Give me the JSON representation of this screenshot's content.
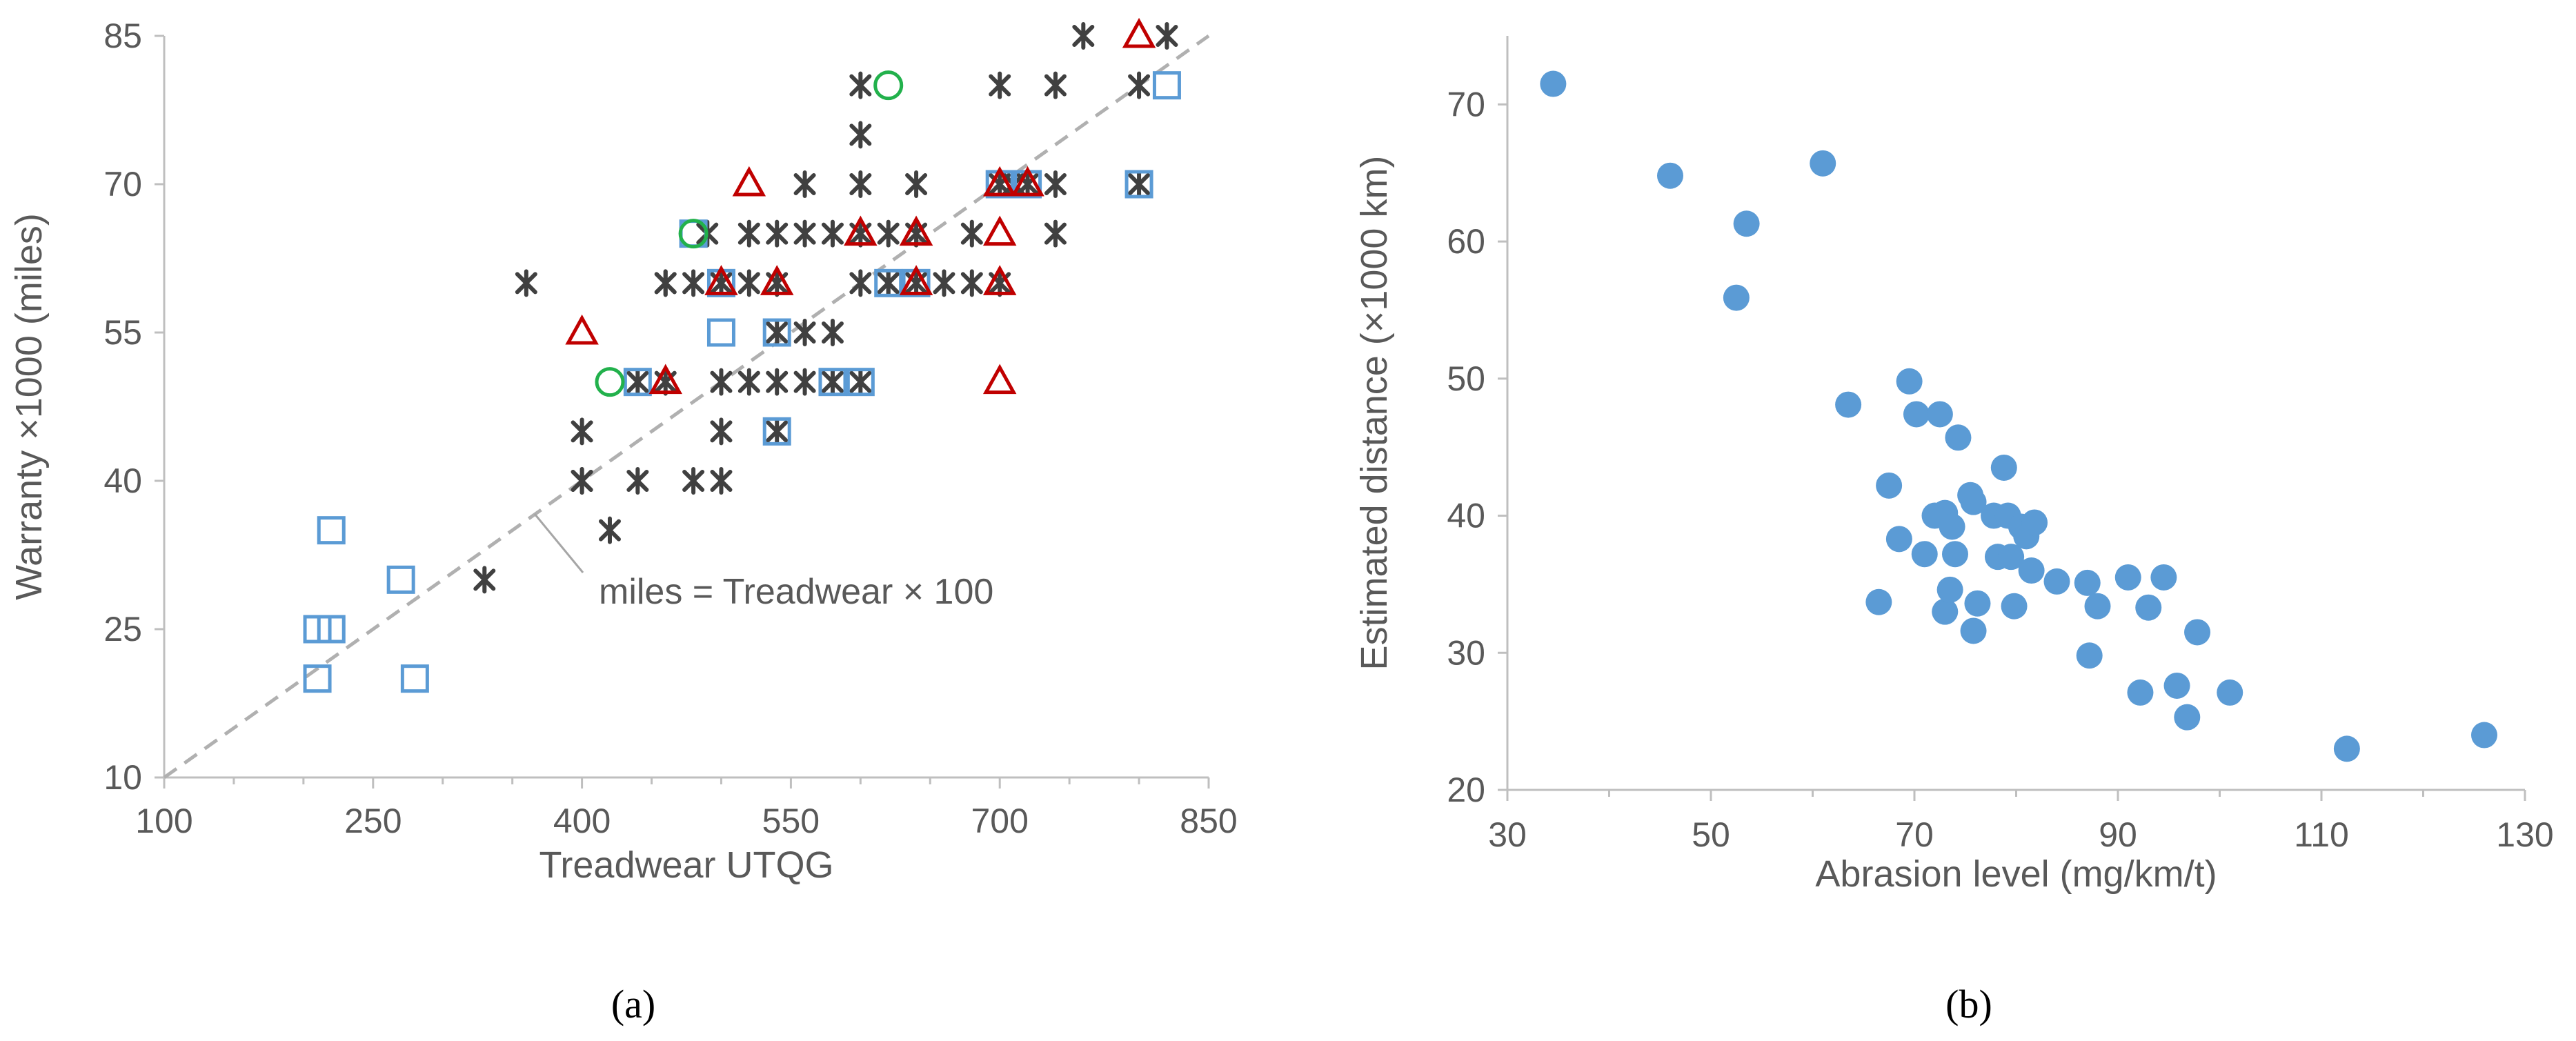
{
  "panels": [
    {
      "label": "(a)"
    },
    {
      "label": "(b)"
    }
  ],
  "chart_data": [
    {
      "type": "scatter",
      "title": "",
      "xlabel": "Treadwear UTQG",
      "ylabel": "Warranty ×1000 (miles)",
      "xlim": [
        100,
        850
      ],
      "ylim": [
        10,
        85
      ],
      "xticks": [
        100,
        250,
        400,
        550,
        700,
        850
      ],
      "yticks": [
        10,
        25,
        40,
        55,
        70,
        85
      ],
      "grid": false,
      "colors": {
        "asterisk": "#404040",
        "square": "#5b9bd5",
        "triangle": "#c00000",
        "circle": "#22b14c",
        "refline": "#b0b0b0"
      },
      "reference_line": {
        "label": "miles = Treadwear × 100",
        "x": [
          100,
          850
        ],
        "y": [
          10,
          85
        ]
      },
      "series": [
        {
          "marker": "asterisk",
          "points": [
            [
              360,
              60
            ],
            [
              400,
              45
            ],
            [
              400,
              40
            ],
            [
              400,
              40
            ],
            [
              420,
              35
            ],
            [
              440,
              40
            ],
            [
              440,
              50
            ],
            [
              460,
              50
            ],
            [
              460,
              60
            ],
            [
              480,
              40
            ],
            [
              480,
              60
            ],
            [
              490,
              65
            ],
            [
              500,
              40
            ],
            [
              500,
              45
            ],
            [
              500,
              50
            ],
            [
              500,
              60
            ],
            [
              500,
              60
            ],
            [
              520,
              50
            ],
            [
              520,
              60
            ],
            [
              520,
              65
            ],
            [
              540,
              50
            ],
            [
              540,
              55
            ],
            [
              540,
              60
            ],
            [
              540,
              65
            ],
            [
              560,
              50
            ],
            [
              560,
              55
            ],
            [
              560,
              65
            ],
            [
              560,
              70
            ],
            [
              580,
              50
            ],
            [
              580,
              55
            ],
            [
              580,
              65
            ],
            [
              600,
              60
            ],
            [
              600,
              65
            ],
            [
              600,
              70
            ],
            [
              600,
              75
            ],
            [
              600,
              80
            ],
            [
              620,
              60
            ],
            [
              620,
              65
            ],
            [
              640,
              60
            ],
            [
              640,
              65
            ],
            [
              640,
              70
            ],
            [
              660,
              60
            ],
            [
              680,
              60
            ],
            [
              680,
              65
            ],
            [
              700,
              60
            ],
            [
              700,
              70
            ],
            [
              700,
              80
            ],
            [
              710,
              70
            ],
            [
              720,
              70
            ],
            [
              740,
              65
            ],
            [
              740,
              70
            ],
            [
              740,
              80
            ],
            [
              760,
              85
            ],
            [
              800,
              70
            ],
            [
              800,
              80
            ],
            [
              820,
              85
            ],
            [
              330,
              30
            ],
            [
              540,
              45
            ],
            [
              460,
              60
            ],
            [
              600,
              50
            ],
            [
              620,
              60
            ]
          ]
        },
        {
          "marker": "square",
          "points": [
            [
              210,
              25
            ],
            [
              210,
              20
            ],
            [
              220,
              35
            ],
            [
              220,
              25
            ],
            [
              270,
              30
            ],
            [
              280,
              20
            ],
            [
              440,
              50
            ],
            [
              480,
              65
            ],
            [
              500,
              60
            ],
            [
              500,
              55
            ],
            [
              540,
              55
            ],
            [
              540,
              45
            ],
            [
              580,
              50
            ],
            [
              600,
              50
            ],
            [
              620,
              60
            ],
            [
              640,
              60
            ],
            [
              700,
              70
            ],
            [
              720,
              70
            ],
            [
              800,
              70
            ],
            [
              820,
              80
            ]
          ]
        },
        {
          "marker": "triangle",
          "points": [
            [
              400,
              55
            ],
            [
              460,
              50
            ],
            [
              500,
              60
            ],
            [
              520,
              70
            ],
            [
              540,
              60
            ],
            [
              600,
              65
            ],
            [
              640,
              65
            ],
            [
              640,
              60
            ],
            [
              700,
              70
            ],
            [
              700,
              65
            ],
            [
              700,
              60
            ],
            [
              700,
              50
            ],
            [
              720,
              70
            ],
            [
              800,
              85
            ]
          ]
        },
        {
          "marker": "circle",
          "points": [
            [
              420,
              50
            ],
            [
              480,
              65
            ],
            [
              620,
              80
            ]
          ]
        }
      ]
    },
    {
      "type": "scatter",
      "title": "",
      "xlabel": "Abrasion level (mg/km/t)",
      "ylabel": "Estimated distance (×1000 km)",
      "xlim": [
        30,
        130
      ],
      "ylim": [
        20,
        75
      ],
      "xticks": [
        30,
        50,
        70,
        90,
        110,
        130
      ],
      "yticks": [
        20,
        30,
        40,
        50,
        60,
        70
      ],
      "grid": false,
      "colors": {
        "point": "#5b9bd5"
      },
      "series": [
        {
          "marker": "dot",
          "points": [
            [
              34.5,
              71.5
            ],
            [
              46,
              64.8
            ],
            [
              52.5,
              55.9
            ],
            [
              53.5,
              61.3
            ],
            [
              61,
              65.7
            ],
            [
              63.5,
              48.1
            ],
            [
              66.5,
              33.7
            ],
            [
              67.5,
              42.2
            ],
            [
              68.5,
              38.3
            ],
            [
              69.5,
              49.8
            ],
            [
              70.2,
              47.4
            ],
            [
              71,
              37.2
            ],
            [
              72,
              40
            ],
            [
              72.5,
              47.4
            ],
            [
              73,
              40.2
            ],
            [
              73,
              33
            ],
            [
              73.5,
              34.6
            ],
            [
              73.7,
              39.2
            ],
            [
              74,
              37.2
            ],
            [
              74.3,
              45.7
            ],
            [
              75.5,
              41.5
            ],
            [
              75.8,
              41
            ],
            [
              75.8,
              31.6
            ],
            [
              76.2,
              33.6
            ],
            [
              77.8,
              40
            ],
            [
              78.2,
              37
            ],
            [
              78.8,
              43.5
            ],
            [
              79.2,
              40
            ],
            [
              79.5,
              37
            ],
            [
              79.8,
              33.4
            ],
            [
              80.5,
              39.2
            ],
            [
              81,
              38.5
            ],
            [
              81.5,
              36
            ],
            [
              81.8,
              39.5
            ],
            [
              84,
              35.2
            ],
            [
              87,
              35.1
            ],
            [
              87.2,
              29.8
            ],
            [
              88,
              33.4
            ],
            [
              91,
              35.5
            ],
            [
              92.2,
              27.1
            ],
            [
              93,
              33.3
            ],
            [
              94.5,
              35.5
            ],
            [
              95.8,
              27.6
            ],
            [
              96.8,
              25.3
            ],
            [
              97.8,
              31.5
            ],
            [
              101,
              27.1
            ],
            [
              112.5,
              23
            ],
            [
              126,
              24
            ]
          ]
        }
      ]
    }
  ]
}
